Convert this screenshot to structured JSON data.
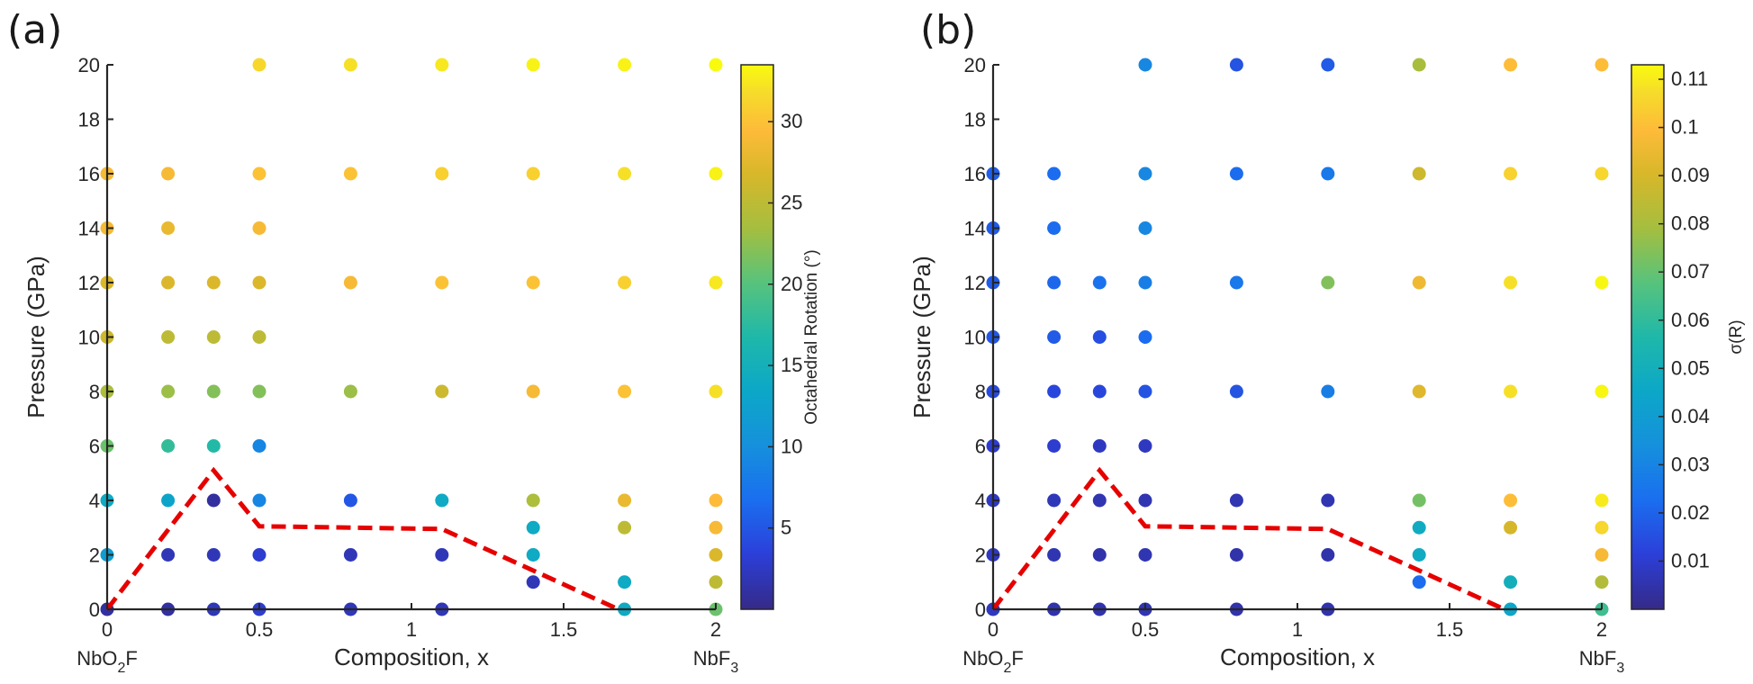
{
  "chart_data": [
    {
      "type": "scatter",
      "panel_label": "(a)",
      "xlabel": "Composition, x",
      "ylabel": "Pressure (GPa)",
      "xlim": [
        0,
        2
      ],
      "ylim": [
        0,
        20
      ],
      "xticks": [
        0,
        0.5,
        1,
        1.5,
        2
      ],
      "xtick_labels": [
        "0",
        "0.5",
        "1",
        "1.5",
        "2"
      ],
      "yticks": [
        0,
        2,
        4,
        6,
        8,
        10,
        12,
        14,
        16,
        18,
        20
      ],
      "ytick_labels": [
        "0",
        "2",
        "4",
        "6",
        "8",
        "10",
        "12",
        "14",
        "16",
        "18",
        "20"
      ],
      "endmember_left": {
        "base": "NbO",
        "sub": "2",
        "tail": "F"
      },
      "endmember_right": {
        "base": "NbF",
        "sub": "3",
        "tail": ""
      },
      "colorbar": {
        "label": "Octahedral Rotation (°)",
        "clim": [
          0,
          33.5
        ],
        "ticks": [
          5,
          10,
          15,
          20,
          25,
          30
        ],
        "tick_labels": [
          "5",
          "10",
          "15",
          "20",
          "25",
          "30"
        ],
        "colormap": "parula"
      },
      "boundary_line": {
        "color": "#e60000",
        "style": "dashed",
        "points": [
          [
            0,
            0
          ],
          [
            0.35,
            5.1
          ],
          [
            0.5,
            3.05
          ],
          [
            1.1,
            2.95
          ],
          [
            1.68,
            0
          ]
        ]
      },
      "points": [
        {
          "x": 0,
          "y": 0,
          "c": 1
        },
        {
          "x": 0,
          "y": 2,
          "c": 12
        },
        {
          "x": 0,
          "y": 4,
          "c": 14
        },
        {
          "x": 0,
          "y": 6,
          "c": 21
        },
        {
          "x": 0,
          "y": 8,
          "c": 24
        },
        {
          "x": 0,
          "y": 10,
          "c": 26
        },
        {
          "x": 0,
          "y": 12,
          "c": 27
        },
        {
          "x": 0,
          "y": 14,
          "c": 29
        },
        {
          "x": 0,
          "y": 16,
          "c": 29
        },
        {
          "x": 0.2,
          "y": 0,
          "c": 1
        },
        {
          "x": 0.2,
          "y": 2,
          "c": 2
        },
        {
          "x": 0.2,
          "y": 4,
          "c": 13
        },
        {
          "x": 0.2,
          "y": 6,
          "c": 18
        },
        {
          "x": 0.2,
          "y": 8,
          "c": 23
        },
        {
          "x": 0.2,
          "y": 10,
          "c": 25
        },
        {
          "x": 0.2,
          "y": 12,
          "c": 27
        },
        {
          "x": 0.2,
          "y": 14,
          "c": 28
        },
        {
          "x": 0.2,
          "y": 16,
          "c": 29
        },
        {
          "x": 0.35,
          "y": 0,
          "c": 2
        },
        {
          "x": 0.35,
          "y": 2,
          "c": 2
        },
        {
          "x": 0.35,
          "y": 4,
          "c": 1
        },
        {
          "x": 0.35,
          "y": 6,
          "c": 17
        },
        {
          "x": 0.35,
          "y": 8,
          "c": 22
        },
        {
          "x": 0.35,
          "y": 10,
          "c": 25
        },
        {
          "x": 0.35,
          "y": 12,
          "c": 27
        },
        {
          "x": 0.5,
          "y": 0,
          "c": 3
        },
        {
          "x": 0.5,
          "y": 2,
          "c": 3
        },
        {
          "x": 0.5,
          "y": 4,
          "c": 9
        },
        {
          "x": 0.5,
          "y": 6,
          "c": 9
        },
        {
          "x": 0.5,
          "y": 8,
          "c": 22
        },
        {
          "x": 0.5,
          "y": 10,
          "c": 25
        },
        {
          "x": 0.5,
          "y": 12,
          "c": 27
        },
        {
          "x": 0.5,
          "y": 14,
          "c": 29
        },
        {
          "x": 0.5,
          "y": 16,
          "c": 30
        },
        {
          "x": 0.5,
          "y": 20,
          "c": 31.5
        },
        {
          "x": 0.8,
          "y": 0,
          "c": 2
        },
        {
          "x": 0.8,
          "y": 2,
          "c": 2
        },
        {
          "x": 0.8,
          "y": 4,
          "c": 5
        },
        {
          "x": 0.8,
          "y": 8,
          "c": 23
        },
        {
          "x": 0.8,
          "y": 12,
          "c": 29
        },
        {
          "x": 0.8,
          "y": 16,
          "c": 30
        },
        {
          "x": 0.8,
          "y": 20,
          "c": 32
        },
        {
          "x": 1.1,
          "y": 0,
          "c": 2
        },
        {
          "x": 1.1,
          "y": 2,
          "c": 2
        },
        {
          "x": 1.1,
          "y": 4,
          "c": 14
        },
        {
          "x": 1.1,
          "y": 8,
          "c": 26
        },
        {
          "x": 1.1,
          "y": 12,
          "c": 30
        },
        {
          "x": 1.1,
          "y": 16,
          "c": 31
        },
        {
          "x": 1.1,
          "y": 20,
          "c": 32.5
        },
        {
          "x": 1.4,
          "y": 1,
          "c": 2
        },
        {
          "x": 1.4,
          "y": 2,
          "c": 14
        },
        {
          "x": 1.4,
          "y": 3,
          "c": 14
        },
        {
          "x": 1.4,
          "y": 4,
          "c": 24
        },
        {
          "x": 1.4,
          "y": 8,
          "c": 29
        },
        {
          "x": 1.4,
          "y": 12,
          "c": 30
        },
        {
          "x": 1.4,
          "y": 16,
          "c": 31
        },
        {
          "x": 1.4,
          "y": 20,
          "c": 33
        },
        {
          "x": 1.7,
          "y": 0,
          "c": 14
        },
        {
          "x": 1.7,
          "y": 1,
          "c": 14
        },
        {
          "x": 1.7,
          "y": 3,
          "c": 25
        },
        {
          "x": 1.7,
          "y": 4,
          "c": 28
        },
        {
          "x": 1.7,
          "y": 8,
          "c": 30
        },
        {
          "x": 1.7,
          "y": 12,
          "c": 31
        },
        {
          "x": 1.7,
          "y": 16,
          "c": 32
        },
        {
          "x": 1.7,
          "y": 20,
          "c": 33
        },
        {
          "x": 2,
          "y": 0,
          "c": 21
        },
        {
          "x": 2,
          "y": 1,
          "c": 25
        },
        {
          "x": 2,
          "y": 2,
          "c": 27
        },
        {
          "x": 2,
          "y": 3,
          "c": 29
        },
        {
          "x": 2,
          "y": 4,
          "c": 29.5
        },
        {
          "x": 2,
          "y": 8,
          "c": 32
        },
        {
          "x": 2,
          "y": 12,
          "c": 32.5
        },
        {
          "x": 2,
          "y": 16,
          "c": 33
        },
        {
          "x": 2,
          "y": 20,
          "c": 33.5
        }
      ]
    },
    {
      "type": "scatter",
      "panel_label": "(b)",
      "xlabel": "Composition, x",
      "ylabel": "Pressure (GPa)",
      "xlim": [
        0,
        2
      ],
      "ylim": [
        0,
        20
      ],
      "xticks": [
        0,
        0.5,
        1,
        1.5,
        2
      ],
      "xtick_labels": [
        "0",
        "0.5",
        "1",
        "1.5",
        "2"
      ],
      "yticks": [
        0,
        2,
        4,
        6,
        8,
        10,
        12,
        14,
        16,
        18,
        20
      ],
      "ytick_labels": [
        "0",
        "2",
        "4",
        "6",
        "8",
        "10",
        "12",
        "14",
        "16",
        "18",
        "20"
      ],
      "endmember_left": {
        "base": "NbO",
        "sub": "2",
        "tail": "F"
      },
      "endmember_right": {
        "base": "NbF",
        "sub": "3",
        "tail": ""
      },
      "colorbar": {
        "label": "σ(R)",
        "clim": [
          0,
          0.113
        ],
        "ticks": [
          0.01,
          0.02,
          0.03,
          0.04,
          0.05,
          0.06,
          0.07,
          0.08,
          0.09,
          0.1,
          0.11
        ],
        "tick_labels": [
          "0.01",
          "0.02",
          "0.03",
          "0.04",
          "0.05",
          "0.06",
          "0.07",
          "0.08",
          "0.09",
          "0.1",
          "0.11"
        ],
        "colormap": "parula"
      },
      "boundary_line": {
        "color": "#e60000",
        "style": "dashed",
        "points": [
          [
            0,
            0
          ],
          [
            0.35,
            5.1
          ],
          [
            0.5,
            3.05
          ],
          [
            1.1,
            2.95
          ],
          [
            1.68,
            0
          ]
        ]
      },
      "points": [
        {
          "x": 0,
          "y": 0,
          "c": 0.008
        },
        {
          "x": 0,
          "y": 2,
          "c": 0.008
        },
        {
          "x": 0,
          "y": 4,
          "c": 0.008
        },
        {
          "x": 0,
          "y": 6,
          "c": 0.01
        },
        {
          "x": 0,
          "y": 8,
          "c": 0.014
        },
        {
          "x": 0,
          "y": 10,
          "c": 0.017
        },
        {
          "x": 0,
          "y": 12,
          "c": 0.018
        },
        {
          "x": 0,
          "y": 14,
          "c": 0.018
        },
        {
          "x": 0,
          "y": 16,
          "c": 0.019
        },
        {
          "x": 0.2,
          "y": 0,
          "c": 0.005
        },
        {
          "x": 0.2,
          "y": 2,
          "c": 0.006
        },
        {
          "x": 0.2,
          "y": 4,
          "c": 0.007
        },
        {
          "x": 0.2,
          "y": 6,
          "c": 0.01
        },
        {
          "x": 0.2,
          "y": 8,
          "c": 0.013
        },
        {
          "x": 0.2,
          "y": 10,
          "c": 0.018
        },
        {
          "x": 0.2,
          "y": 12,
          "c": 0.021
        },
        {
          "x": 0.2,
          "y": 14,
          "c": 0.022
        },
        {
          "x": 0.2,
          "y": 16,
          "c": 0.022
        },
        {
          "x": 0.35,
          "y": 0,
          "c": 0.005
        },
        {
          "x": 0.35,
          "y": 2,
          "c": 0.005
        },
        {
          "x": 0.35,
          "y": 4,
          "c": 0.006
        },
        {
          "x": 0.35,
          "y": 6,
          "c": 0.008
        },
        {
          "x": 0.35,
          "y": 8,
          "c": 0.013
        },
        {
          "x": 0.35,
          "y": 10,
          "c": 0.015
        },
        {
          "x": 0.35,
          "y": 12,
          "c": 0.024
        },
        {
          "x": 0.5,
          "y": 0,
          "c": 0.006
        },
        {
          "x": 0.5,
          "y": 2,
          "c": 0.006
        },
        {
          "x": 0.5,
          "y": 4,
          "c": 0.006
        },
        {
          "x": 0.5,
          "y": 6,
          "c": 0.008
        },
        {
          "x": 0.5,
          "y": 8,
          "c": 0.016
        },
        {
          "x": 0.5,
          "y": 10,
          "c": 0.022
        },
        {
          "x": 0.5,
          "y": 12,
          "c": 0.028
        },
        {
          "x": 0.5,
          "y": 14,
          "c": 0.031
        },
        {
          "x": 0.5,
          "y": 16,
          "c": 0.031
        },
        {
          "x": 0.5,
          "y": 20,
          "c": 0.031
        },
        {
          "x": 0.8,
          "y": 0,
          "c": 0.005
        },
        {
          "x": 0.8,
          "y": 2,
          "c": 0.005
        },
        {
          "x": 0.8,
          "y": 4,
          "c": 0.006
        },
        {
          "x": 0.8,
          "y": 8,
          "c": 0.016
        },
        {
          "x": 0.8,
          "y": 12,
          "c": 0.026
        },
        {
          "x": 0.8,
          "y": 16,
          "c": 0.022
        },
        {
          "x": 0.8,
          "y": 20,
          "c": 0.016
        },
        {
          "x": 1.1,
          "y": 0,
          "c": 0.005
        },
        {
          "x": 1.1,
          "y": 2,
          "c": 0.005
        },
        {
          "x": 1.1,
          "y": 4,
          "c": 0.006
        },
        {
          "x": 1.1,
          "y": 8,
          "c": 0.028
        },
        {
          "x": 1.1,
          "y": 12,
          "c": 0.074
        },
        {
          "x": 1.1,
          "y": 16,
          "c": 0.026
        },
        {
          "x": 1.1,
          "y": 20,
          "c": 0.018
        },
        {
          "x": 1.4,
          "y": 1,
          "c": 0.022
        },
        {
          "x": 1.4,
          "y": 2,
          "c": 0.048
        },
        {
          "x": 1.4,
          "y": 3,
          "c": 0.048
        },
        {
          "x": 1.4,
          "y": 4,
          "c": 0.072
        },
        {
          "x": 1.4,
          "y": 8,
          "c": 0.092
        },
        {
          "x": 1.4,
          "y": 12,
          "c": 0.096
        },
        {
          "x": 1.4,
          "y": 16,
          "c": 0.088
        },
        {
          "x": 1.4,
          "y": 20,
          "c": 0.08
        },
        {
          "x": 1.7,
          "y": 0,
          "c": 0.045
        },
        {
          "x": 1.7,
          "y": 1,
          "c": 0.05
        },
        {
          "x": 1.7,
          "y": 3,
          "c": 0.09
        },
        {
          "x": 1.7,
          "y": 4,
          "c": 0.1
        },
        {
          "x": 1.7,
          "y": 8,
          "c": 0.108
        },
        {
          "x": 1.7,
          "y": 12,
          "c": 0.108
        },
        {
          "x": 1.7,
          "y": 16,
          "c": 0.105
        },
        {
          "x": 1.7,
          "y": 20,
          "c": 0.1
        },
        {
          "x": 2,
          "y": 0,
          "c": 0.063
        },
        {
          "x": 2,
          "y": 1,
          "c": 0.082
        },
        {
          "x": 2,
          "y": 2,
          "c": 0.098
        },
        {
          "x": 2,
          "y": 3,
          "c": 0.106
        },
        {
          "x": 2,
          "y": 4,
          "c": 0.11
        },
        {
          "x": 2,
          "y": 8,
          "c": 0.112
        },
        {
          "x": 2,
          "y": 12,
          "c": 0.112
        },
        {
          "x": 2,
          "y": 16,
          "c": 0.106
        },
        {
          "x": 2,
          "y": 20,
          "c": 0.1
        }
      ]
    }
  ]
}
